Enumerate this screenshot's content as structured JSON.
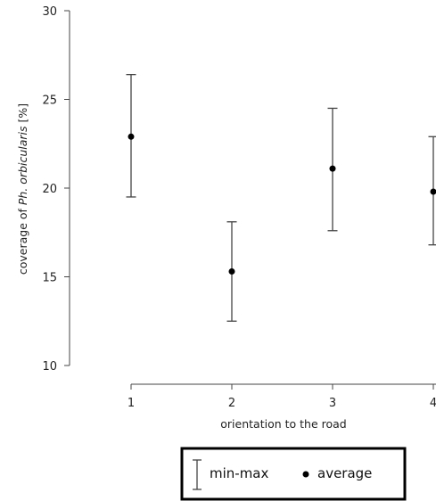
{
  "chart_data": {
    "type": "scatter",
    "categories": [
      "1",
      "2",
      "3",
      "4"
    ],
    "average": [
      22.9,
      15.3,
      21.1,
      19.8
    ],
    "min": [
      19.5,
      12.5,
      17.6,
      16.8
    ],
    "max": [
      26.4,
      18.1,
      24.5,
      22.9
    ],
    "ylim": [
      10,
      30
    ],
    "yticks": [
      "10",
      "15",
      "20",
      "25",
      "30"
    ],
    "xlabel": "orientation to the road",
    "ylabel_prefix": "coverage of ",
    "ylabel_species": "Ph. orbicularis",
    "ylabel_suffix": " [%]",
    "legend": {
      "range_label": "min-max",
      "average_label": "average",
      "placement": "bottom"
    }
  }
}
